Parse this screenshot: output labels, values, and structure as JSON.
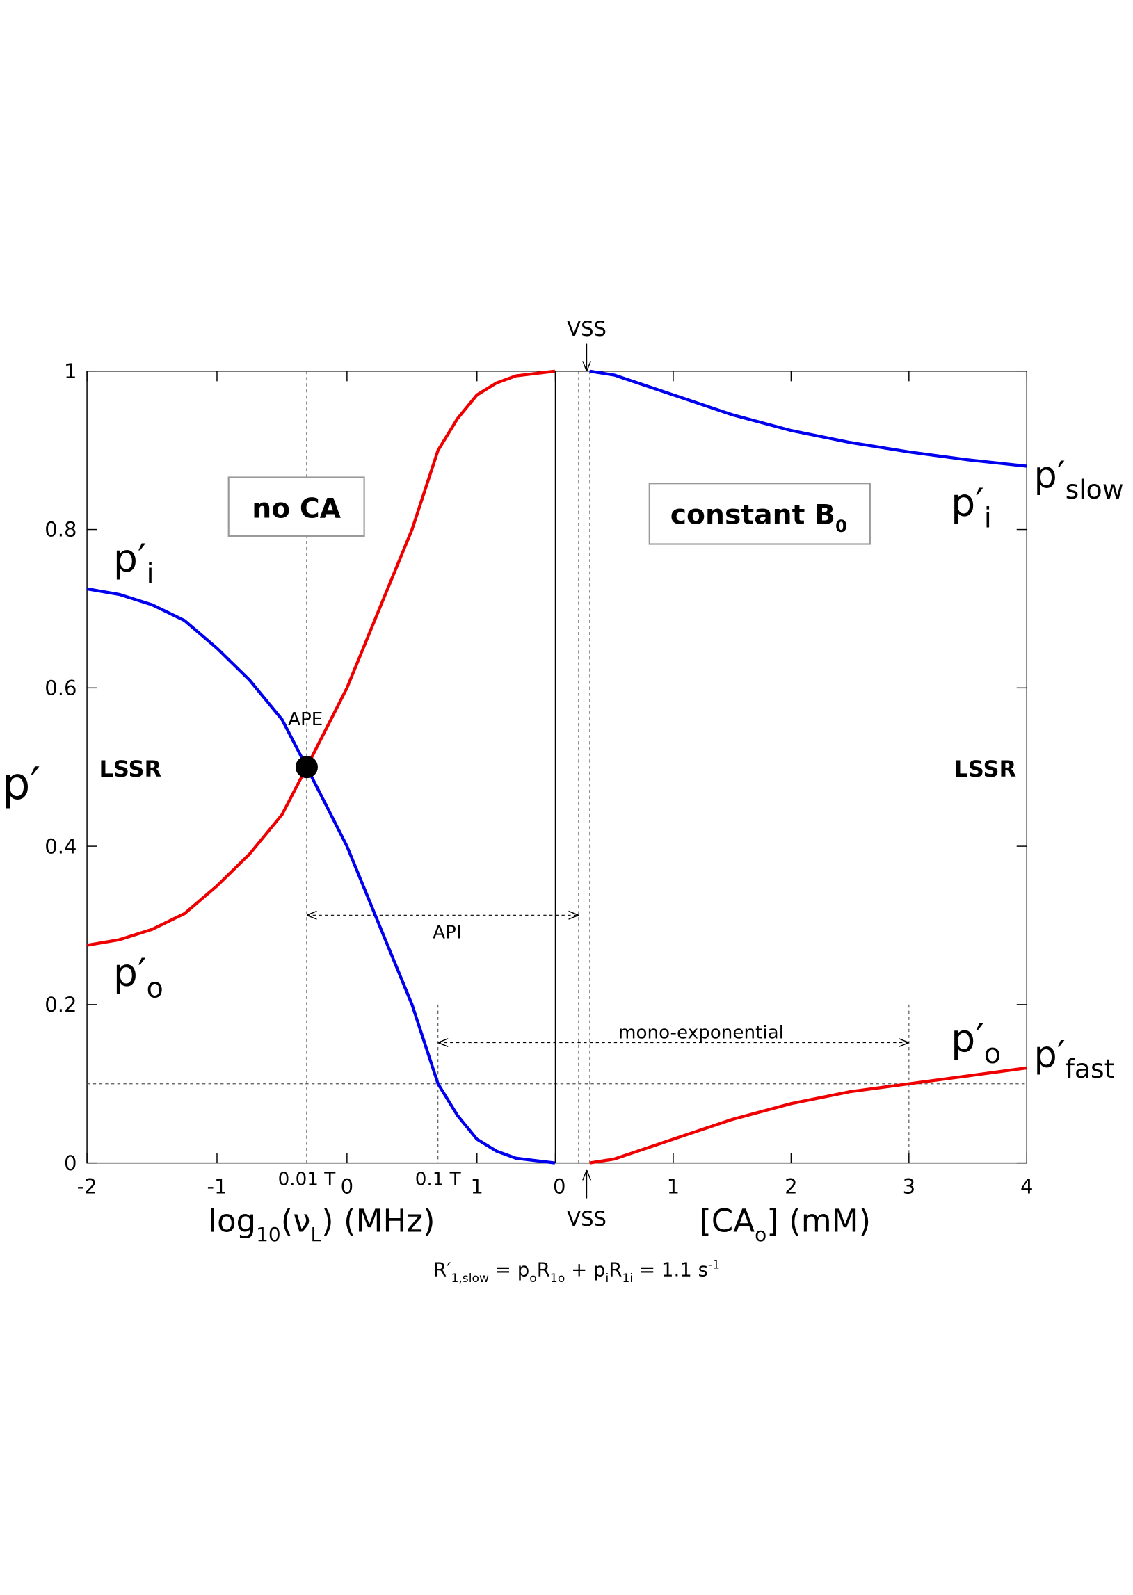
{
  "chart_data": {
    "type": "line",
    "y_label": "p′",
    "ylim": [
      0,
      1
    ],
    "yticks": [
      0,
      0.2,
      0.4,
      0.6,
      0.8,
      1
    ],
    "panels": [
      {
        "xlim": [
          -2,
          1.6
        ],
        "xticks": [
          -2,
          -1,
          0,
          1
        ],
        "x_label": [
          {
            "text": "log"
          },
          {
            "text": "10",
            "sub": true
          },
          {
            "text": "(ν"
          },
          {
            "text": "L",
            "sub": true
          },
          {
            "text": ") (MHz)"
          }
        ],
        "box_label": [
          {
            "text": "no CA"
          }
        ],
        "side_label": "LSSR",
        "series": [
          {
            "name": "p′",
            "name_sub": "i",
            "color": "#0000ee",
            "x": [
              -2,
              -1.75,
              -1.5,
              -1.25,
              -1,
              -0.75,
              -0.5,
              -0.31,
              0,
              0.25,
              0.5,
              0.7,
              0.85,
              1,
              1.15,
              1.3,
              1.6
            ],
            "values": [
              0.725,
              0.718,
              0.705,
              0.685,
              0.65,
              0.61,
              0.56,
              0.5,
              0.4,
              0.3,
              0.2,
              0.1,
              0.06,
              0.03,
              0.015,
              0.006,
              0
            ]
          },
          {
            "name": "p′",
            "name_sub": "o",
            "color": "#ee0000",
            "x": [
              -2,
              -1.75,
              -1.5,
              -1.25,
              -1,
              -0.75,
              -0.5,
              -0.31,
              0,
              0.25,
              0.5,
              0.7,
              0.85,
              1,
              1.15,
              1.3,
              1.6
            ],
            "values": [
              0.275,
              0.282,
              0.295,
              0.315,
              0.35,
              0.39,
              0.44,
              0.5,
              0.6,
              0.7,
              0.8,
              0.9,
              0.94,
              0.97,
              0.985,
              0.994,
              1
            ]
          }
        ]
      },
      {
        "xlim": [
          0,
          4
        ],
        "xticks": [
          0,
          1,
          2,
          3,
          4
        ],
        "x_label": [
          {
            "text": "[CA"
          },
          {
            "text": "o",
            "sub": true
          },
          {
            "text": "] (mM)"
          }
        ],
        "box_label": [
          {
            "text": "constant B"
          },
          {
            "text": "0",
            "sub": true
          }
        ],
        "side_label": "LSSR",
        "series": [
          {
            "name": "p′",
            "name_sub": "i",
            "color": "#0000ee",
            "x": [
              0.29,
              0.5,
              1,
              1.5,
              2,
              2.5,
              3,
              3.5,
              4
            ],
            "values": [
              1,
              0.995,
              0.97,
              0.945,
              0.925,
              0.91,
              0.898,
              0.888,
              0.88
            ]
          },
          {
            "name": "p′",
            "name_sub": "o",
            "color": "#ee0000",
            "x": [
              0.29,
              0.5,
              1,
              1.5,
              2,
              2.5,
              3,
              3.5,
              4
            ],
            "values": [
              0,
              0.005,
              0.03,
              0.055,
              0.075,
              0.09,
              0.1,
              0.11,
              0.12
            ]
          }
        ]
      }
    ],
    "ape": {
      "x": -0.31,
      "y": 0.5,
      "label": "APE"
    },
    "field_ticks": [
      {
        "x": -0.31,
        "label": "0.01 T"
      },
      {
        "x": 0.7,
        "label": "0.1 T"
      }
    ],
    "threshold": 0.1,
    "mono_end": 3,
    "api_label": "API",
    "mono_label": "mono-exponential",
    "vss_label": "VSS",
    "slow_label": {
      "name": "p′",
      "sub": "slow"
    },
    "fast_label": {
      "name": "p′",
      "sub": "fast"
    },
    "formula": [
      {
        "text": "R′"
      },
      {
        "text": "1,slow",
        "sub": true
      },
      {
        "text": " = p"
      },
      {
        "text": "o",
        "sub": true
      },
      {
        "text": "R"
      },
      {
        "text": "1o",
        "sub": true
      },
      {
        "text": " + p"
      },
      {
        "text": "i",
        "sub": true
      },
      {
        "text": "R"
      },
      {
        "text": "1i",
        "sub": true
      },
      {
        "text": " = 1.1 s"
      },
      {
        "text": "-1",
        "sup": true
      }
    ]
  }
}
